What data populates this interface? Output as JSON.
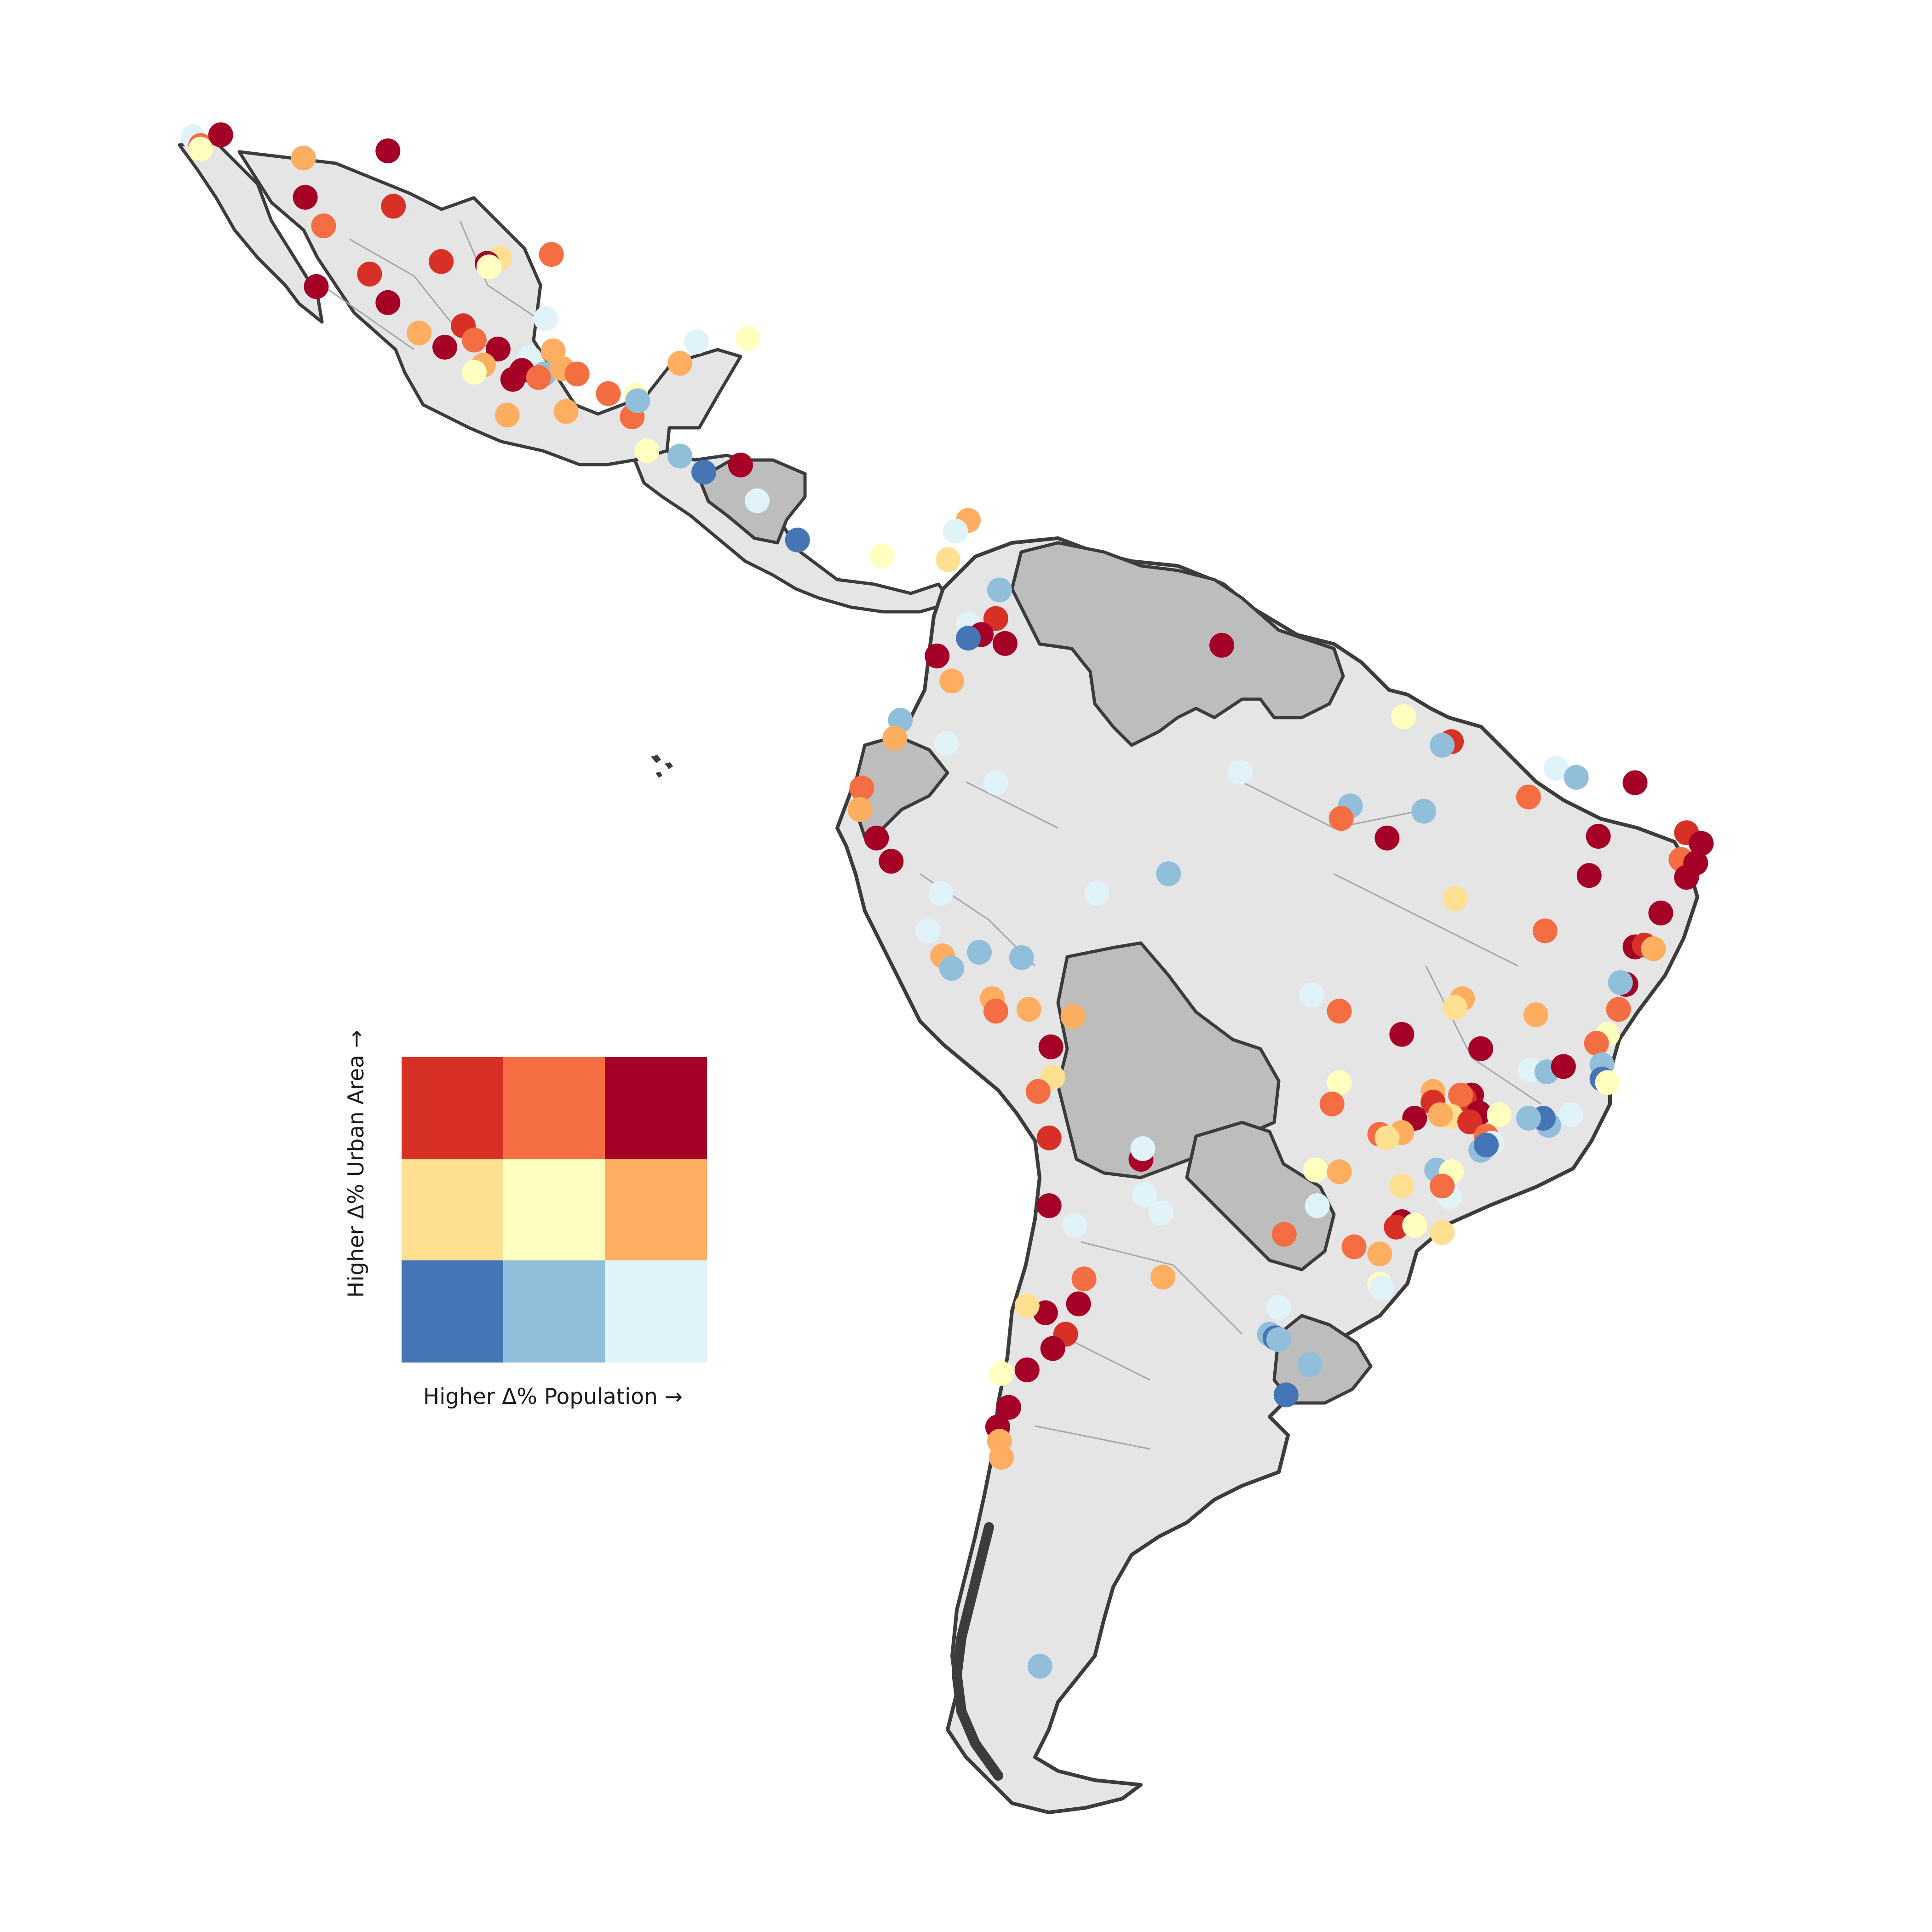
{
  "legend": {
    "x_label": "Higher Δ% Population →",
    "y_label": "Higher Δ% Urban Area →",
    "grid_colors": [
      [
        "#d73027",
        "#f46d43",
        "#a50026"
      ],
      [
        "#fee090",
        "#ffffbf",
        "#fdae61"
      ],
      [
        "#4575b4",
        "#91bfdb",
        "#e0f3f8"
      ]
    ]
  },
  "colors": {
    "land": "#e5e5e5",
    "no_data_land": "#bdbdbd",
    "country_border": "#3c3c3c",
    "admin_border": "#a5a5a5",
    "background": "#ffffff"
  },
  "city_points": [
    {
      "cls": "e0f3f8",
      "lon": -117.0,
      "lat": 32.5
    },
    {
      "cls": "f46d43",
      "lon": -116.6,
      "lat": 32.0
    },
    {
      "cls": "a50026",
      "lon": -115.5,
      "lat": 32.6
    },
    {
      "cls": "ffffbf",
      "lon": -116.6,
      "lat": 31.8
    },
    {
      "cls": "fdae61",
      "lon": -111.0,
      "lat": 31.3
    },
    {
      "cls": "a50026",
      "lon": -106.4,
      "lat": 31.7
    },
    {
      "cls": "a50026",
      "lon": -110.9,
      "lat": 29.1
    },
    {
      "cls": "d73027",
      "lon": -106.1,
      "lat": 28.6
    },
    {
      "cls": "f46d43",
      "lon": -109.9,
      "lat": 27.5
    },
    {
      "cls": "d73027",
      "lon": -107.4,
      "lat": 24.8
    },
    {
      "cls": "a50026",
      "lon": -106.4,
      "lat": 23.2
    },
    {
      "cls": "fee090",
      "lon": -100.3,
      "lat": 25.7
    },
    {
      "cls": "f46d43",
      "lon": -97.5,
      "lat": 25.9
    },
    {
      "cls": "e0f3f8",
      "lon": -97.8,
      "lat": 22.3
    },
    {
      "cls": "d73027",
      "lon": -103.5,
      "lat": 25.5
    },
    {
      "cls": "a50026",
      "lon": -101.0,
      "lat": 25.4
    },
    {
      "cls": "ffffbf",
      "lon": -100.9,
      "lat": 25.2
    },
    {
      "cls": "a50026",
      "lon": -110.3,
      "lat": 24.1
    },
    {
      "cls": "fdae61",
      "lon": -104.7,
      "lat": 21.5
    },
    {
      "cls": "d73027",
      "lon": -102.3,
      "lat": 21.9
    },
    {
      "cls": "a50026",
      "lon": -103.3,
      "lat": 20.7
    },
    {
      "cls": "f46d43",
      "lon": -101.7,
      "lat": 21.1
    },
    {
      "cls": "a50026",
      "lon": -100.4,
      "lat": 20.6
    },
    {
      "cls": "e0f3f8",
      "lon": -98.7,
      "lat": 20.1
    },
    {
      "cls": "fdae61",
      "lon": -101.2,
      "lat": 19.7
    },
    {
      "cls": "a50026",
      "lon": -99.1,
      "lat": 19.4
    },
    {
      "cls": "91bfdb",
      "lon": -97.9,
      "lat": 19.2
    },
    {
      "cls": "f46d43",
      "lon": -98.2,
      "lat": 19.0
    },
    {
      "cls": "ffffbf",
      "lon": -101.7,
      "lat": 19.3
    },
    {
      "cls": "a50026",
      "lon": -99.6,
      "lat": 18.9
    },
    {
      "cls": "fdae61",
      "lon": -96.9,
      "lat": 19.5
    },
    {
      "cls": "f46d43",
      "lon": -96.1,
      "lat": 19.2
    },
    {
      "cls": "fdae61",
      "lon": -99.9,
      "lat": 16.9
    },
    {
      "cls": "fdae61",
      "lon": -96.7,
      "lat": 17.1
    },
    {
      "cls": "f46d43",
      "lon": -93.1,
      "lat": 16.8
    },
    {
      "cls": "ffffbf",
      "lon": -92.9,
      "lat": 18.0
    },
    {
      "cls": "fdae61",
      "lon": -90.5,
      "lat": 19.8
    },
    {
      "cls": "e0f3f8",
      "lon": -89.6,
      "lat": 21.0
    },
    {
      "cls": "ffffbf",
      "lon": -86.8,
      "lat": 21.2
    },
    {
      "cls": "f46d43",
      "lon": -94.4,
      "lat": 18.1
    },
    {
      "cls": "91bfdb",
      "lon": -92.8,
      "lat": 17.7
    },
    {
      "cls": "fdae61",
      "lon": -97.4,
      "lat": 20.5
    },
    {
      "cls": "ffffbf",
      "lon": -92.3,
      "lat": 14.9
    },
    {
      "cls": "91bfdb",
      "lon": -90.5,
      "lat": 14.6
    },
    {
      "cls": "4575b4",
      "lon": -89.2,
      "lat": 13.7
    },
    {
      "cls": "a50026",
      "lon": -87.2,
      "lat": 14.1
    },
    {
      "cls": "e0f3f8",
      "lon": -86.3,
      "lat": 12.1
    },
    {
      "cls": "4575b4",
      "lon": -84.1,
      "lat": 9.9
    },
    {
      "cls": "ffffbf",
      "lon": -79.5,
      "lat": 9.0
    },
    {
      "cls": "fdae61",
      "lon": -74.8,
      "lat": 11.0
    },
    {
      "cls": "e0f3f8",
      "lon": -75.5,
      "lat": 10.4
    },
    {
      "cls": "fee090",
      "lon": -75.9,
      "lat": 8.8
    },
    {
      "cls": "91bfdb",
      "lon": -73.1,
      "lat": 7.1
    },
    {
      "cls": "d73027",
      "lon": -73.3,
      "lat": 5.5
    },
    {
      "cls": "e0f3f8",
      "lon": -74.8,
      "lat": 5.2
    },
    {
      "cls": "a50026",
      "lon": -74.1,
      "lat": 4.6
    },
    {
      "cls": "4575b4",
      "lon": -74.8,
      "lat": 4.4
    },
    {
      "cls": "a50026",
      "lon": -76.5,
      "lat": 3.4
    },
    {
      "cls": "a50026",
      "lon": -72.8,
      "lat": 4.1
    },
    {
      "cls": "fdae61",
      "lon": -75.7,
      "lat": 2.0
    },
    {
      "cls": "91bfdb",
      "lon": -78.5,
      "lat": -0.2
    },
    {
      "cls": "e0f3f8",
      "lon": -76.0,
      "lat": -1.5
    },
    {
      "cls": "a50026",
      "lon": -61.0,
      "lat": 4.0
    },
    {
      "cls": "ffffbf",
      "lon": -51.1,
      "lat": 0.0
    },
    {
      "cls": "d73027",
      "lon": -48.5,
      "lat": -1.4
    },
    {
      "cls": "91bfdb",
      "lon": -49.0,
      "lat": -1.6
    },
    {
      "cls": "e0f3f8",
      "lon": -60.0,
      "lat": -3.1
    },
    {
      "cls": "e0f3f8",
      "lon": -42.8,
      "lat": -2.9
    },
    {
      "cls": "91bfdb",
      "lon": -41.7,
      "lat": -3.4
    },
    {
      "cls": "a50026",
      "lon": -38.5,
      "lat": -3.7
    },
    {
      "cls": "f46d43",
      "lon": -44.3,
      "lat": -4.5
    },
    {
      "cls": "91bfdb",
      "lon": -54.0,
      "lat": -5.0
    },
    {
      "cls": "f46d43",
      "lon": -54.5,
      "lat": -5.7
    },
    {
      "cls": "a50026",
      "lon": -52.0,
      "lat": -6.8
    },
    {
      "cls": "91bfdb",
      "lon": -50.0,
      "lat": -5.3
    },
    {
      "cls": "a50026",
      "lon": -40.5,
      "lat": -6.7
    },
    {
      "cls": "d73027",
      "lon": -35.7,
      "lat": -6.5
    },
    {
      "cls": "a50026",
      "lon": -34.9,
      "lat": -7.1
    },
    {
      "cls": "f46d43",
      "lon": -36.0,
      "lat": -8.0
    },
    {
      "cls": "a50026",
      "lon": -35.2,
      "lat": -8.2
    },
    {
      "cls": "a50026",
      "lon": -35.7,
      "lat": -9.0
    },
    {
      "cls": "a50026",
      "lon": -41.0,
      "lat": -8.9
    },
    {
      "cls": "fee090",
      "lon": -48.3,
      "lat": -10.2
    },
    {
      "cls": "f46d43",
      "lon": -43.4,
      "lat": -12.0
    },
    {
      "cls": "a50026",
      "lon": -38.5,
      "lat": -12.9
    },
    {
      "cls": "d73027",
      "lon": -38.0,
      "lat": -12.8
    },
    {
      "cls": "a50026",
      "lon": -37.1,
      "lat": -11.0
    },
    {
      "cls": "fdae61",
      "lon": -37.5,
      "lat": -13.0
    },
    {
      "cls": "a50026",
      "lon": -39.0,
      "lat": -15.0
    },
    {
      "cls": "91bfdb",
      "lon": -39.3,
      "lat": -14.9
    },
    {
      "cls": "f46d43",
      "lon": -39.4,
      "lat": -16.4
    },
    {
      "cls": "ffffbf",
      "lon": -40.0,
      "lat": -17.8
    },
    {
      "cls": "e0f3f8",
      "lon": -56.1,
      "lat": -15.6
    },
    {
      "cls": "f46d43",
      "lon": -54.6,
      "lat": -16.5
    },
    {
      "cls": "fdae61",
      "lon": -47.9,
      "lat": -15.8
    },
    {
      "cls": "fee090",
      "lon": -48.3,
      "lat": -16.3
    },
    {
      "cls": "a50026",
      "lon": -51.2,
      "lat": -17.8
    },
    {
      "cls": "a50026",
      "lon": -46.9,
      "lat": -18.6
    },
    {
      "cls": "fdae61",
      "lon": -43.9,
      "lat": -16.7
    },
    {
      "cls": "f46d43",
      "lon": -40.6,
      "lat": -18.3
    },
    {
      "cls": "e0f3f8",
      "lon": -44.2,
      "lat": -19.8
    },
    {
      "cls": "91bfdb",
      "lon": -43.3,
      "lat": -19.9
    },
    {
      "cls": "a50026",
      "lon": -42.4,
      "lat": -19.6
    },
    {
      "cls": "91bfdb",
      "lon": -40.3,
      "lat": -19.5
    },
    {
      "cls": "4575b4",
      "lon": -40.3,
      "lat": -20.3
    },
    {
      "cls": "ffffbf",
      "lon": -40.0,
      "lat": -20.5
    },
    {
      "cls": "a50026",
      "lon": -47.4,
      "lat": -21.2
    },
    {
      "cls": "d73027",
      "lon": -47.8,
      "lat": -21.4
    },
    {
      "cls": "ffffbf",
      "lon": -54.6,
      "lat": -20.5
    },
    {
      "cls": "f46d43",
      "lon": -55.0,
      "lat": -21.7
    },
    {
      "cls": "fdae61",
      "lon": -49.5,
      "lat": -21.0
    },
    {
      "cls": "d73027",
      "lon": -49.5,
      "lat": -21.6
    },
    {
      "cls": "f46d43",
      "lon": -48.0,
      "lat": -21.2
    },
    {
      "cls": "a50026",
      "lon": -47.0,
      "lat": -22.2
    },
    {
      "cls": "fee090",
      "lon": -48.5,
      "lat": -22.4
    },
    {
      "cls": "d73027",
      "lon": -47.5,
      "lat": -22.7
    },
    {
      "cls": "ffffbf",
      "lon": -45.9,
      "lat": -22.3
    },
    {
      "cls": "91bfdb",
      "lon": -43.2,
      "lat": -22.9
    },
    {
      "cls": "4575b4",
      "lon": -43.5,
      "lat": -22.5
    },
    {
      "cls": "e0f3f8",
      "lon": -42.0,
      "lat": -22.3
    },
    {
      "cls": "91bfdb",
      "lon": -44.3,
      "lat": -22.5
    },
    {
      "cls": "a50026",
      "lon": -50.5,
      "lat": -22.5
    },
    {
      "cls": "fdae61",
      "lon": -49.1,
      "lat": -22.3
    },
    {
      "cls": "f46d43",
      "lon": -46.6,
      "lat": -23.5
    },
    {
      "cls": "e0f3f8",
      "lon": -46.3,
      "lat": -23.9
    },
    {
      "cls": "91bfdb",
      "lon": -46.9,
      "lat": -24.3
    },
    {
      "cls": "4575b4",
      "lon": -46.6,
      "lat": -24.0
    },
    {
      "cls": "fdae61",
      "lon": -51.2,
      "lat": -23.3
    },
    {
      "cls": "f46d43",
      "lon": -52.4,
      "lat": -23.4
    },
    {
      "cls": "fee090",
      "lon": -52.0,
      "lat": -23.6
    },
    {
      "cls": "91bfdb",
      "lon": -49.3,
      "lat": -25.4
    },
    {
      "cls": "ffffbf",
      "lon": -48.5,
      "lat": -25.5
    },
    {
      "cls": "e0f3f8",
      "lon": -48.6,
      "lat": -26.9
    },
    {
      "cls": "fee090",
      "lon": -51.2,
      "lat": -26.3
    },
    {
      "cls": "f46d43",
      "lon": -49.0,
      "lat": -26.3
    },
    {
      "cls": "a50026",
      "lon": -51.2,
      "lat": -28.3
    },
    {
      "cls": "d73027",
      "lon": -51.5,
      "lat": -28.6
    },
    {
      "cls": "fee090",
      "lon": -49.0,
      "lat": -28.9
    },
    {
      "cls": "ffffbf",
      "lon": -50.5,
      "lat": -28.5
    },
    {
      "cls": "f46d43",
      "lon": -53.8,
      "lat": -29.7
    },
    {
      "cls": "fdae61",
      "lon": -52.4,
      "lat": -30.1
    },
    {
      "cls": "ffffbf",
      "lon": -52.4,
      "lat": -31.8
    },
    {
      "cls": "e0f3f8",
      "lon": -52.3,
      "lat": -32.0
    },
    {
      "cls": "f46d43",
      "lon": -57.6,
      "lat": -29.0
    },
    {
      "cls": "ffffbf",
      "lon": -55.9,
      "lat": -25.4
    },
    {
      "cls": "e0f3f8",
      "lon": -55.8,
      "lat": -27.4
    },
    {
      "cls": "fdae61",
      "lon": -54.6,
      "lat": -25.5
    },
    {
      "cls": "91bfdb",
      "lon": -58.4,
      "lat": -34.6
    },
    {
      "cls": "4575b4",
      "lon": -58.1,
      "lat": -34.8
    },
    {
      "cls": "91bfdb",
      "lon": -57.9,
      "lat": -34.9
    },
    {
      "cls": "4575b4",
      "lon": -57.5,
      "lat": -38.0
    },
    {
      "cls": "91bfdb",
      "lon": -56.2,
      "lat": -36.3
    },
    {
      "cls": "e0f3f8",
      "lon": -57.9,
      "lat": -33.1
    },
    {
      "cls": "a50026",
      "lon": -65.4,
      "lat": -24.8
    },
    {
      "cls": "e0f3f8",
      "lon": -65.3,
      "lat": -24.2
    },
    {
      "cls": "e0f3f8",
      "lon": -65.2,
      "lat": -26.8
    },
    {
      "cls": "e0f3f8",
      "lon": -64.3,
      "lat": -27.8
    },
    {
      "cls": "a50026",
      "lon": -68.8,
      "lat": -32.9
    },
    {
      "cls": "fdae61",
      "lon": -64.2,
      "lat": -31.4
    },
    {
      "cls": "f46d43",
      "lon": -68.5,
      "lat": -31.5
    },
    {
      "cls": "d73027",
      "lon": -69.5,
      "lat": -34.6
    },
    {
      "cls": "e0f3f8",
      "lon": -69.0,
      "lat": -28.5
    },
    {
      "cls": "a50026",
      "lon": -70.6,
      "lat": -33.4
    },
    {
      "cls": "fee090",
      "lon": -71.6,
      "lat": -33.0
    },
    {
      "cls": "a50026",
      "lon": -70.2,
      "lat": -35.4
    },
    {
      "cls": "a50026",
      "lon": -71.6,
      "lat": -36.6
    },
    {
      "cls": "ffffbf",
      "lon": -73.0,
      "lat": -36.8
    },
    {
      "cls": "a50026",
      "lon": -72.6,
      "lat": -38.7
    },
    {
      "cls": "a50026",
      "lon": -73.2,
      "lat": -39.8
    },
    {
      "cls": "fdae61",
      "lon": -73.1,
      "lat": -40.6
    },
    {
      "cls": "fdae61",
      "lon": -73.0,
      "lat": -41.5
    },
    {
      "cls": "91bfdb",
      "lon": -70.9,
      "lat": -53.2
    },
    {
      "cls": "a50026",
      "lon": -70.3,
      "lat": -18.5
    },
    {
      "cls": "fee090",
      "lon": -70.2,
      "lat": -20.2
    },
    {
      "cls": "fdae61",
      "lon": -69.1,
      "lat": -16.8
    },
    {
      "cls": "d73027",
      "lon": -70.4,
      "lat": -23.6
    },
    {
      "cls": "a50026",
      "lon": -70.4,
      "lat": -27.4
    },
    {
      "cls": "fdae61",
      "lon": -71.5,
      "lat": -16.4
    },
    {
      "cls": "f46d43",
      "lon": -71.0,
      "lat": -21.0
    },
    {
      "cls": "f46d43",
      "lon": -80.6,
      "lat": -4.0
    },
    {
      "cls": "fdae61",
      "lon": -80.7,
      "lat": -5.2
    },
    {
      "cls": "a50026",
      "lon": -79.8,
      "lat": -6.8
    },
    {
      "cls": "a50026",
      "lon": -79.0,
      "lat": -8.1
    },
    {
      "cls": "e0f3f8",
      "lon": -77.0,
      "lat": -12.0
    },
    {
      "cls": "fdae61",
      "lon": -76.2,
      "lat": -13.4
    },
    {
      "cls": "91bfdb",
      "lon": -75.7,
      "lat": -14.1
    },
    {
      "cls": "e0f3f8",
      "lon": -76.3,
      "lat": -9.9
    },
    {
      "cls": "91bfdb",
      "lon": -74.2,
      "lat": -13.2
    },
    {
      "cls": "fdae61",
      "lon": -73.5,
      "lat": -15.8
    },
    {
      "cls": "f46d43",
      "lon": -73.3,
      "lat": -16.5
    },
    {
      "cls": "91bfdb",
      "lon": -71.9,
      "lat": -13.5
    },
    {
      "cls": "e0f3f8",
      "lon": -73.3,
      "lat": -3.7
    },
    {
      "cls": "e0f3f8",
      "lon": -67.8,
      "lat": -9.9
    },
    {
      "cls": "91bfdb",
      "lon": -63.9,
      "lat": -8.8
    },
    {
      "cls": "fdae61",
      "lon": -78.8,
      "lat": -1.2
    }
  ]
}
